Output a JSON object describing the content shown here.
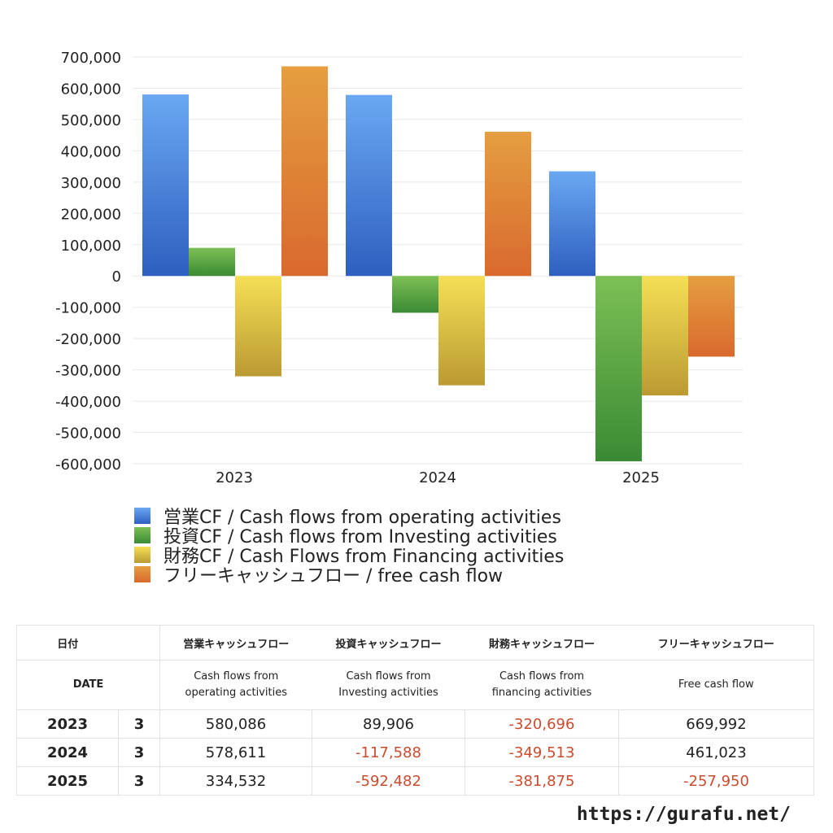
{
  "chart_data": {
    "type": "bar",
    "categories": [
      "2023",
      "2024",
      "2025"
    ],
    "series": [
      {
        "name": "営業CF / Cash flows from operating activities",
        "values": [
          580086,
          578611,
          334532
        ]
      },
      {
        "name": "投資CF / Cash flows from Investing activities",
        "values": [
          89906,
          -117588,
          -592482
        ]
      },
      {
        "name": "財務CF / Cash Flows from Financing activities",
        "values": [
          -320696,
          -349513,
          -381875
        ]
      },
      {
        "name": "フリーキャッシュフロー / free cash flow",
        "values": [
          669992,
          461023,
          -257950
        ]
      }
    ],
    "colors": {
      "operating": [
        "#6aa8f2",
        "#2e5fc0"
      ],
      "investing": [
        "#7cc055",
        "#3b8a34"
      ],
      "financing": [
        "#f5df55",
        "#bb9a33"
      ],
      "free": [
        "#e59e40",
        "#d9692e"
      ]
    },
    "ylim": [
      -600000,
      700000
    ],
    "yticks": [
      700000,
      600000,
      500000,
      400000,
      300000,
      200000,
      100000,
      0,
      -100000,
      -200000,
      -300000,
      -400000,
      -500000,
      -600000
    ],
    "ytick_labels": [
      "700,000",
      "600,000",
      "500,000",
      "400,000",
      "300,000",
      "200,000",
      "100,000",
      "0",
      "-100,000",
      "-200,000",
      "-300,000",
      "-400,000",
      "-500,000",
      "-600,000"
    ],
    "grid": true,
    "legend_position": "bottom-left"
  },
  "table": {
    "header_jp": [
      "日付",
      "",
      "営業キャッシュフロー",
      "投資キャッシュフロー",
      "財務キャッシュフロー",
      "フリーキャッシュフロー"
    ],
    "header_en_date": "DATE",
    "header_en_1": [
      "Cash flows from",
      "operating activities"
    ],
    "header_en_2": [
      "Cash flows from",
      "Investing activities"
    ],
    "header_en_3": [
      "Cash flows from",
      "financing activities"
    ],
    "header_en_4": "Free cash flow",
    "rows": [
      {
        "year": "2023",
        "month": "3",
        "op": "580,086",
        "inv": "89,906",
        "fin": "-320,696",
        "free": "669,992"
      },
      {
        "year": "2024",
        "month": "3",
        "op": "578,611",
        "inv": "-117,588",
        "fin": "-349,513",
        "free": "461,023"
      },
      {
        "year": "2025",
        "month": "3",
        "op": "334,532",
        "inv": "-592,482",
        "fin": "-381,875",
        "free": "-257,950"
      }
    ]
  },
  "footer": {
    "url": "https://gurafu.net/"
  }
}
